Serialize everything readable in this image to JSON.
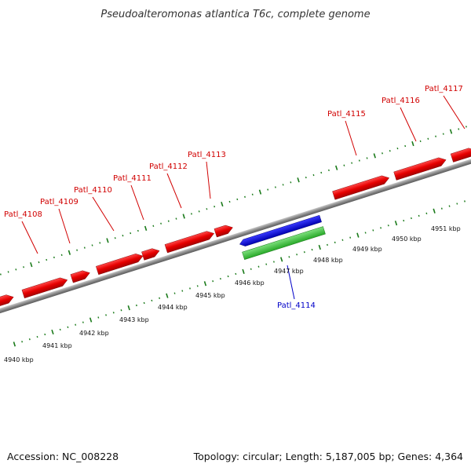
{
  "title": "Pseudoalteromonas atlantica T6c, complete genome",
  "footer": {
    "accession": "Accession: NC_008228",
    "summary": "Topology: circular; Length: 5,187,005 bp; Genes: 4,364"
  },
  "colors": {
    "forward_gene": "#e60000",
    "reverse_gene": "#0000d8",
    "highlight_gene": "#2fc42f",
    "gene_label_forward": "#d10000",
    "gene_label_reverse": "#0000c8",
    "tick": "#1a7a1a",
    "backbone": "#888888"
  },
  "genes_forward": [
    {
      "label": "Patl_4108"
    },
    {
      "label": "Patl_4109"
    },
    {
      "label": "Patl_4110"
    },
    {
      "label": "Patl_4111"
    },
    {
      "label": "Patl_4112"
    },
    {
      "label": "Patl_4113"
    },
    {
      "label": "Patl_4115"
    },
    {
      "label": "Patl_4116"
    },
    {
      "label": "Patl_4117"
    }
  ],
  "genes_reverse": [
    {
      "label": "Patl_4114"
    }
  ],
  "kbp_labels": [
    "4940 kbp",
    "4941 kbp",
    "4942 kbp",
    "4943 kbp",
    "4944 kbp",
    "4945 kbp",
    "4946 kbp",
    "4947 kbp",
    "4948 kbp",
    "4949 kbp",
    "4950 kbp",
    "4951 kbp"
  ]
}
